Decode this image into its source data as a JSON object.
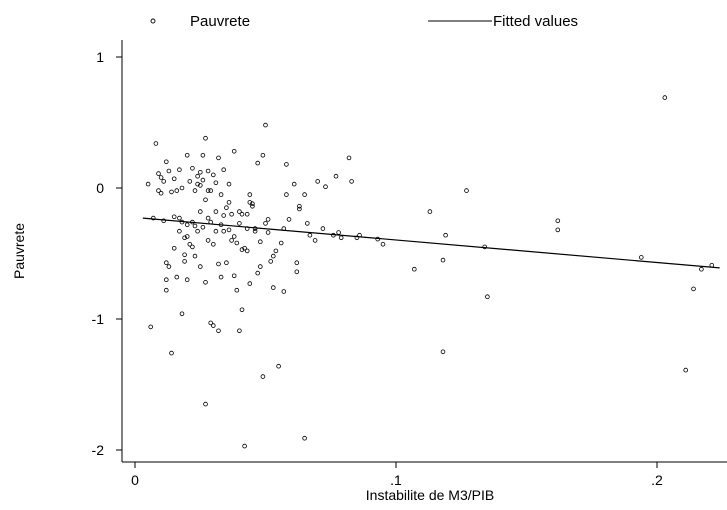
{
  "chart_data": {
    "type": "scatter",
    "xlabel": "Instabilite de M3/PIB",
    "ylabel": "Pauvrete",
    "xlim": [
      0,
      0.225
    ],
    "ylim": [
      -2.1,
      1.1
    ],
    "x_ticks": [
      {
        "value": 0,
        "label": "0"
      },
      {
        "value": 0.1,
        "label": ".1"
      },
      {
        "value": 0.2,
        "label": ".2"
      }
    ],
    "y_ticks": [
      {
        "value": 1,
        "label": "1"
      },
      {
        "value": 0,
        "label": "0"
      },
      {
        "value": -1,
        "label": "-1"
      },
      {
        "value": -2,
        "label": "-2"
      }
    ],
    "grid": false,
    "legend_position": "top",
    "legend": [
      {
        "label": "Pauvrete",
        "kind": "marker"
      },
      {
        "label": "Fitted values",
        "kind": "line"
      }
    ],
    "fitted_line": {
      "x": [
        0.003,
        0.224
      ],
      "y": [
        -0.23,
        -0.61
      ]
    },
    "points": [
      {
        "x": 0.005,
        "y": 0.03
      },
      {
        "x": 0.006,
        "y": -1.06
      },
      {
        "x": 0.007,
        "y": -0.23
      },
      {
        "x": 0.008,
        "y": 0.34
      },
      {
        "x": 0.009,
        "y": -0.02
      },
      {
        "x": 0.009,
        "y": 0.11
      },
      {
        "x": 0.01,
        "y": -0.04
      },
      {
        "x": 0.01,
        "y": 0.08
      },
      {
        "x": 0.011,
        "y": -0.25
      },
      {
        "x": 0.011,
        "y": 0.05
      },
      {
        "x": 0.012,
        "y": -0.7
      },
      {
        "x": 0.012,
        "y": -0.57
      },
      {
        "x": 0.012,
        "y": -0.78
      },
      {
        "x": 0.012,
        "y": 0.2
      },
      {
        "x": 0.013,
        "y": -0.6
      },
      {
        "x": 0.013,
        "y": 0.13
      },
      {
        "x": 0.014,
        "y": -1.26
      },
      {
        "x": 0.014,
        "y": -0.03
      },
      {
        "x": 0.015,
        "y": -0.22
      },
      {
        "x": 0.015,
        "y": -0.46
      },
      {
        "x": 0.015,
        "y": 0.07
      },
      {
        "x": 0.016,
        "y": -0.02
      },
      {
        "x": 0.016,
        "y": -0.68
      },
      {
        "x": 0.017,
        "y": -0.33
      },
      {
        "x": 0.017,
        "y": -0.23
      },
      {
        "x": 0.017,
        "y": 0.14
      },
      {
        "x": 0.018,
        "y": -0.96
      },
      {
        "x": 0.018,
        "y": -0.26
      },
      {
        "x": 0.018,
        "y": 0.0
      },
      {
        "x": 0.019,
        "y": -0.38
      },
      {
        "x": 0.019,
        "y": -0.51
      },
      {
        "x": 0.019,
        "y": -0.56
      },
      {
        "x": 0.02,
        "y": -0.7
      },
      {
        "x": 0.02,
        "y": -0.28
      },
      {
        "x": 0.02,
        "y": 0.25
      },
      {
        "x": 0.021,
        "y": -0.43
      },
      {
        "x": 0.021,
        "y": 0.05
      },
      {
        "x": 0.022,
        "y": -0.45
      },
      {
        "x": 0.022,
        "y": -0.26
      },
      {
        "x": 0.022,
        "y": 0.15
      },
      {
        "x": 0.023,
        "y": -0.52
      },
      {
        "x": 0.023,
        "y": -0.29
      },
      {
        "x": 0.023,
        "y": -0.02
      },
      {
        "x": 0.024,
        "y": -0.33
      },
      {
        "x": 0.024,
        "y": 0.09
      },
      {
        "x": 0.024,
        "y": 0.03
      },
      {
        "x": 0.025,
        "y": -0.6
      },
      {
        "x": 0.025,
        "y": 0.12
      },
      {
        "x": 0.025,
        "y": 0.02
      },
      {
        "x": 0.025,
        "y": -0.18
      },
      {
        "x": 0.026,
        "y": 0.25
      },
      {
        "x": 0.026,
        "y": -0.3
      },
      {
        "x": 0.026,
        "y": 0.06
      },
      {
        "x": 0.027,
        "y": -0.72
      },
      {
        "x": 0.027,
        "y": 0.38
      },
      {
        "x": 0.027,
        "y": -1.65
      },
      {
        "x": 0.027,
        "y": -0.09
      },
      {
        "x": 0.028,
        "y": -0.4
      },
      {
        "x": 0.028,
        "y": -0.23
      },
      {
        "x": 0.028,
        "y": 0.13
      },
      {
        "x": 0.029,
        "y": -0.02
      },
      {
        "x": 0.029,
        "y": -1.03
      },
      {
        "x": 0.029,
        "y": -0.26
      },
      {
        "x": 0.03,
        "y": 0.1
      },
      {
        "x": 0.03,
        "y": -0.43
      },
      {
        "x": 0.03,
        "y": -1.05
      },
      {
        "x": 0.031,
        "y": 0.04
      },
      {
        "x": 0.031,
        "y": -0.33
      },
      {
        "x": 0.031,
        "y": -0.18
      },
      {
        "x": 0.032,
        "y": -1.09
      },
      {
        "x": 0.032,
        "y": -0.58
      },
      {
        "x": 0.032,
        "y": 0.23
      },
      {
        "x": 0.033,
        "y": -0.28
      },
      {
        "x": 0.033,
        "y": -0.05
      },
      {
        "x": 0.033,
        "y": -0.68
      },
      {
        "x": 0.034,
        "y": 0.14
      },
      {
        "x": 0.034,
        "y": -0.21
      },
      {
        "x": 0.034,
        "y": -0.33
      },
      {
        "x": 0.035,
        "y": -0.15
      },
      {
        "x": 0.035,
        "y": -0.57
      },
      {
        "x": 0.036,
        "y": -0.32
      },
      {
        "x": 0.036,
        "y": -0.11
      },
      {
        "x": 0.036,
        "y": 0.03
      },
      {
        "x": 0.037,
        "y": -0.4
      },
      {
        "x": 0.037,
        "y": -0.2
      },
      {
        "x": 0.038,
        "y": 0.28
      },
      {
        "x": 0.038,
        "y": -0.67
      },
      {
        "x": 0.038,
        "y": -0.37
      },
      {
        "x": 0.039,
        "y": -0.78
      },
      {
        "x": 0.039,
        "y": -0.42
      },
      {
        "x": 0.04,
        "y": -1.09
      },
      {
        "x": 0.04,
        "y": -0.27
      },
      {
        "x": 0.04,
        "y": -0.18
      },
      {
        "x": 0.041,
        "y": -0.47
      },
      {
        "x": 0.041,
        "y": -0.93
      },
      {
        "x": 0.041,
        "y": -0.2
      },
      {
        "x": 0.042,
        "y": -1.97
      },
      {
        "x": 0.042,
        "y": -0.46
      },
      {
        "x": 0.043,
        "y": -0.2
      },
      {
        "x": 0.043,
        "y": -0.31
      },
      {
        "x": 0.044,
        "y": -0.11
      },
      {
        "x": 0.044,
        "y": -0.05
      },
      {
        "x": 0.044,
        "y": -0.73
      },
      {
        "x": 0.045,
        "y": -0.12
      },
      {
        "x": 0.045,
        "y": -0.14
      },
      {
        "x": 0.046,
        "y": -0.33
      },
      {
        "x": 0.046,
        "y": -0.31
      },
      {
        "x": 0.047,
        "y": 0.19
      },
      {
        "x": 0.047,
        "y": -0.65
      },
      {
        "x": 0.048,
        "y": -0.6
      },
      {
        "x": 0.048,
        "y": -0.41
      },
      {
        "x": 0.049,
        "y": -1.44
      },
      {
        "x": 0.049,
        "y": 0.25
      },
      {
        "x": 0.05,
        "y": 0.48
      },
      {
        "x": 0.05,
        "y": -0.27
      },
      {
        "x": 0.051,
        "y": -0.24
      },
      {
        "x": 0.051,
        "y": -0.34
      },
      {
        "x": 0.052,
        "y": -0.56
      },
      {
        "x": 0.053,
        "y": -0.76
      },
      {
        "x": 0.053,
        "y": -0.52
      },
      {
        "x": 0.054,
        "y": -0.48
      },
      {
        "x": 0.055,
        "y": -1.36
      },
      {
        "x": 0.056,
        "y": -0.42
      },
      {
        "x": 0.057,
        "y": -0.79
      },
      {
        "x": 0.057,
        "y": -0.31
      },
      {
        "x": 0.058,
        "y": -0.05
      },
      {
        "x": 0.058,
        "y": 0.18
      },
      {
        "x": 0.059,
        "y": -0.24
      },
      {
        "x": 0.061,
        "y": 0.03
      },
      {
        "x": 0.062,
        "y": -0.57
      },
      {
        "x": 0.062,
        "y": -0.64
      },
      {
        "x": 0.063,
        "y": -0.14
      },
      {
        "x": 0.063,
        "y": -0.16
      },
      {
        "x": 0.065,
        "y": -0.05
      },
      {
        "x": 0.065,
        "y": -1.91
      },
      {
        "x": 0.066,
        "y": -0.27
      },
      {
        "x": 0.067,
        "y": -0.36
      },
      {
        "x": 0.069,
        "y": -0.4
      },
      {
        "x": 0.07,
        "y": 0.05
      },
      {
        "x": 0.072,
        "y": -0.31
      },
      {
        "x": 0.073,
        "y": 0.01
      },
      {
        "x": 0.076,
        "y": -0.36
      },
      {
        "x": 0.077,
        "y": 0.09
      },
      {
        "x": 0.078,
        "y": -0.34
      },
      {
        "x": 0.079,
        "y": -0.38
      },
      {
        "x": 0.082,
        "y": 0.23
      },
      {
        "x": 0.083,
        "y": 0.05
      },
      {
        "x": 0.085,
        "y": -0.38
      },
      {
        "x": 0.086,
        "y": -0.36
      },
      {
        "x": 0.093,
        "y": -0.39
      },
      {
        "x": 0.095,
        "y": -0.43
      },
      {
        "x": 0.107,
        "y": -0.62
      },
      {
        "x": 0.113,
        "y": -0.18
      },
      {
        "x": 0.118,
        "y": -0.55
      },
      {
        "x": 0.118,
        "y": -1.25
      },
      {
        "x": 0.119,
        "y": -0.36
      },
      {
        "x": 0.127,
        "y": -0.02
      },
      {
        "x": 0.134,
        "y": -0.45
      },
      {
        "x": 0.135,
        "y": -0.83
      },
      {
        "x": 0.162,
        "y": -0.25
      },
      {
        "x": 0.162,
        "y": -0.32
      },
      {
        "x": 0.194,
        "y": -0.53
      },
      {
        "x": 0.203,
        "y": 0.69
      },
      {
        "x": 0.211,
        "y": -1.39
      },
      {
        "x": 0.214,
        "y": -0.77
      },
      {
        "x": 0.217,
        "y": -0.62
      },
      {
        "x": 0.221,
        "y": -0.59
      },
      {
        "x": 0.043,
        "y": -0.48
      },
      {
        "x": 0.02,
        "y": -0.37
      },
      {
        "x": 0.028,
        "y": -0.02
      }
    ]
  }
}
